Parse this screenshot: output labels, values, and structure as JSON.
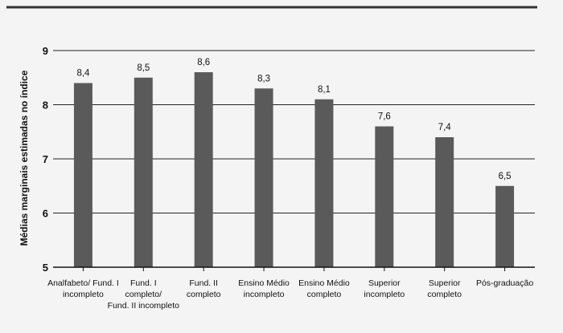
{
  "chart_data": {
    "type": "bar",
    "title": "",
    "xlabel": "",
    "ylabel": "Médias marginais estimadas no índice",
    "ylim": [
      5,
      9
    ],
    "yticks": [
      "9",
      "8",
      "7",
      "6",
      "5"
    ],
    "grid": true,
    "categories": [
      [
        "Analfabeto/ Fund. I",
        "incompleto"
      ],
      [
        "Fund. I",
        "completo/",
        "Fund. II incompleto"
      ],
      [
        "Fund. II",
        "completo"
      ],
      [
        "Ensino Médio",
        "incompleto"
      ],
      [
        "Ensino Médio",
        "completo"
      ],
      [
        "Superior",
        "incompleto"
      ],
      [
        "Superior",
        "completo"
      ],
      [
        "Pós-graduação"
      ]
    ],
    "values": [
      8.4,
      8.5,
      8.6,
      8.3,
      8.1,
      7.6,
      7.4,
      6.5
    ],
    "value_labels": [
      "8,4",
      "8,5",
      "8,6",
      "8,3",
      "8,1",
      "7,6",
      "7,4",
      "6,5"
    ],
    "bar_color": "#5a5a5a",
    "axis_color": "#111111"
  }
}
